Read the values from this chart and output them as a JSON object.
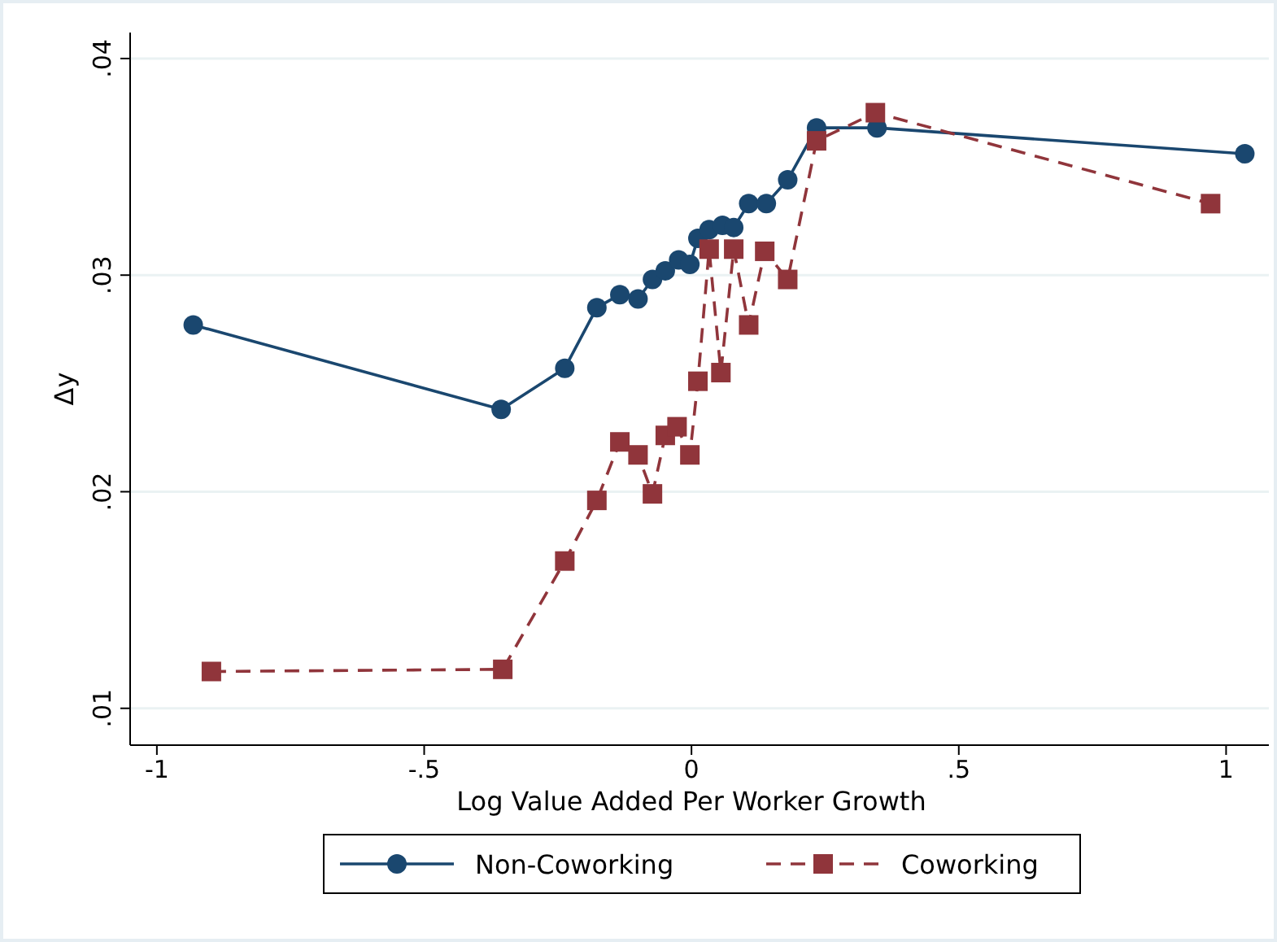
{
  "chart_data": {
    "type": "line",
    "xlabel": "Log Value Added Per Worker Growth",
    "ylabel": "Δy",
    "xlim": [
      -1.05,
      1.08
    ],
    "ylim": [
      0.0083,
      0.0412
    ],
    "xticks": [
      {
        "value": -1,
        "label": "-1"
      },
      {
        "value": -0.5,
        "label": "-.5"
      },
      {
        "value": 0,
        "label": "0"
      },
      {
        "value": 0.5,
        "label": ".5"
      },
      {
        "value": 1,
        "label": "1"
      }
    ],
    "yticks": [
      {
        "value": 0.01,
        "label": ".01"
      },
      {
        "value": 0.02,
        "label": ".02"
      },
      {
        "value": 0.03,
        "label": ".03"
      },
      {
        "value": 0.04,
        "label": ".04"
      }
    ],
    "grid": "y",
    "legend": "bottom",
    "series": [
      {
        "name": "Non-Coworking",
        "color": "#1a476f",
        "marker": "circle",
        "line_style": "solid",
        "x": [
          -0.932,
          -0.356,
          -0.237,
          -0.177,
          -0.134,
          -0.1,
          -0.073,
          -0.049,
          -0.024,
          -0.003,
          0.012,
          0.033,
          0.058,
          0.079,
          0.107,
          0.14,
          0.18,
          0.234,
          0.347,
          1.035
        ],
        "values": [
          0.0277,
          0.0238,
          0.0257,
          0.0285,
          0.0291,
          0.0289,
          0.0298,
          0.0302,
          0.0307,
          0.0305,
          0.0317,
          0.0321,
          0.0323,
          0.0322,
          0.0333,
          0.0333,
          0.0344,
          0.0368,
          0.0368,
          0.0356
        ]
      },
      {
        "name": "Coworking",
        "color": "#90353b",
        "marker": "square",
        "line_style": "dashed",
        "x": [
          -0.898,
          -0.353,
          -0.237,
          -0.177,
          -0.134,
          -0.1,
          -0.073,
          -0.049,
          -0.027,
          -0.003,
          0.012,
          0.033,
          0.055,
          0.079,
          0.107,
          0.137,
          0.18,
          0.234,
          0.344,
          0.971
        ],
        "values": [
          0.0117,
          0.0118,
          0.0168,
          0.0196,
          0.0223,
          0.0217,
          0.0199,
          0.0226,
          0.023,
          0.0217,
          0.0251,
          0.0312,
          0.0255,
          0.0312,
          0.0277,
          0.0311,
          0.0298,
          0.0362,
          0.0375,
          0.0333
        ]
      }
    ]
  }
}
